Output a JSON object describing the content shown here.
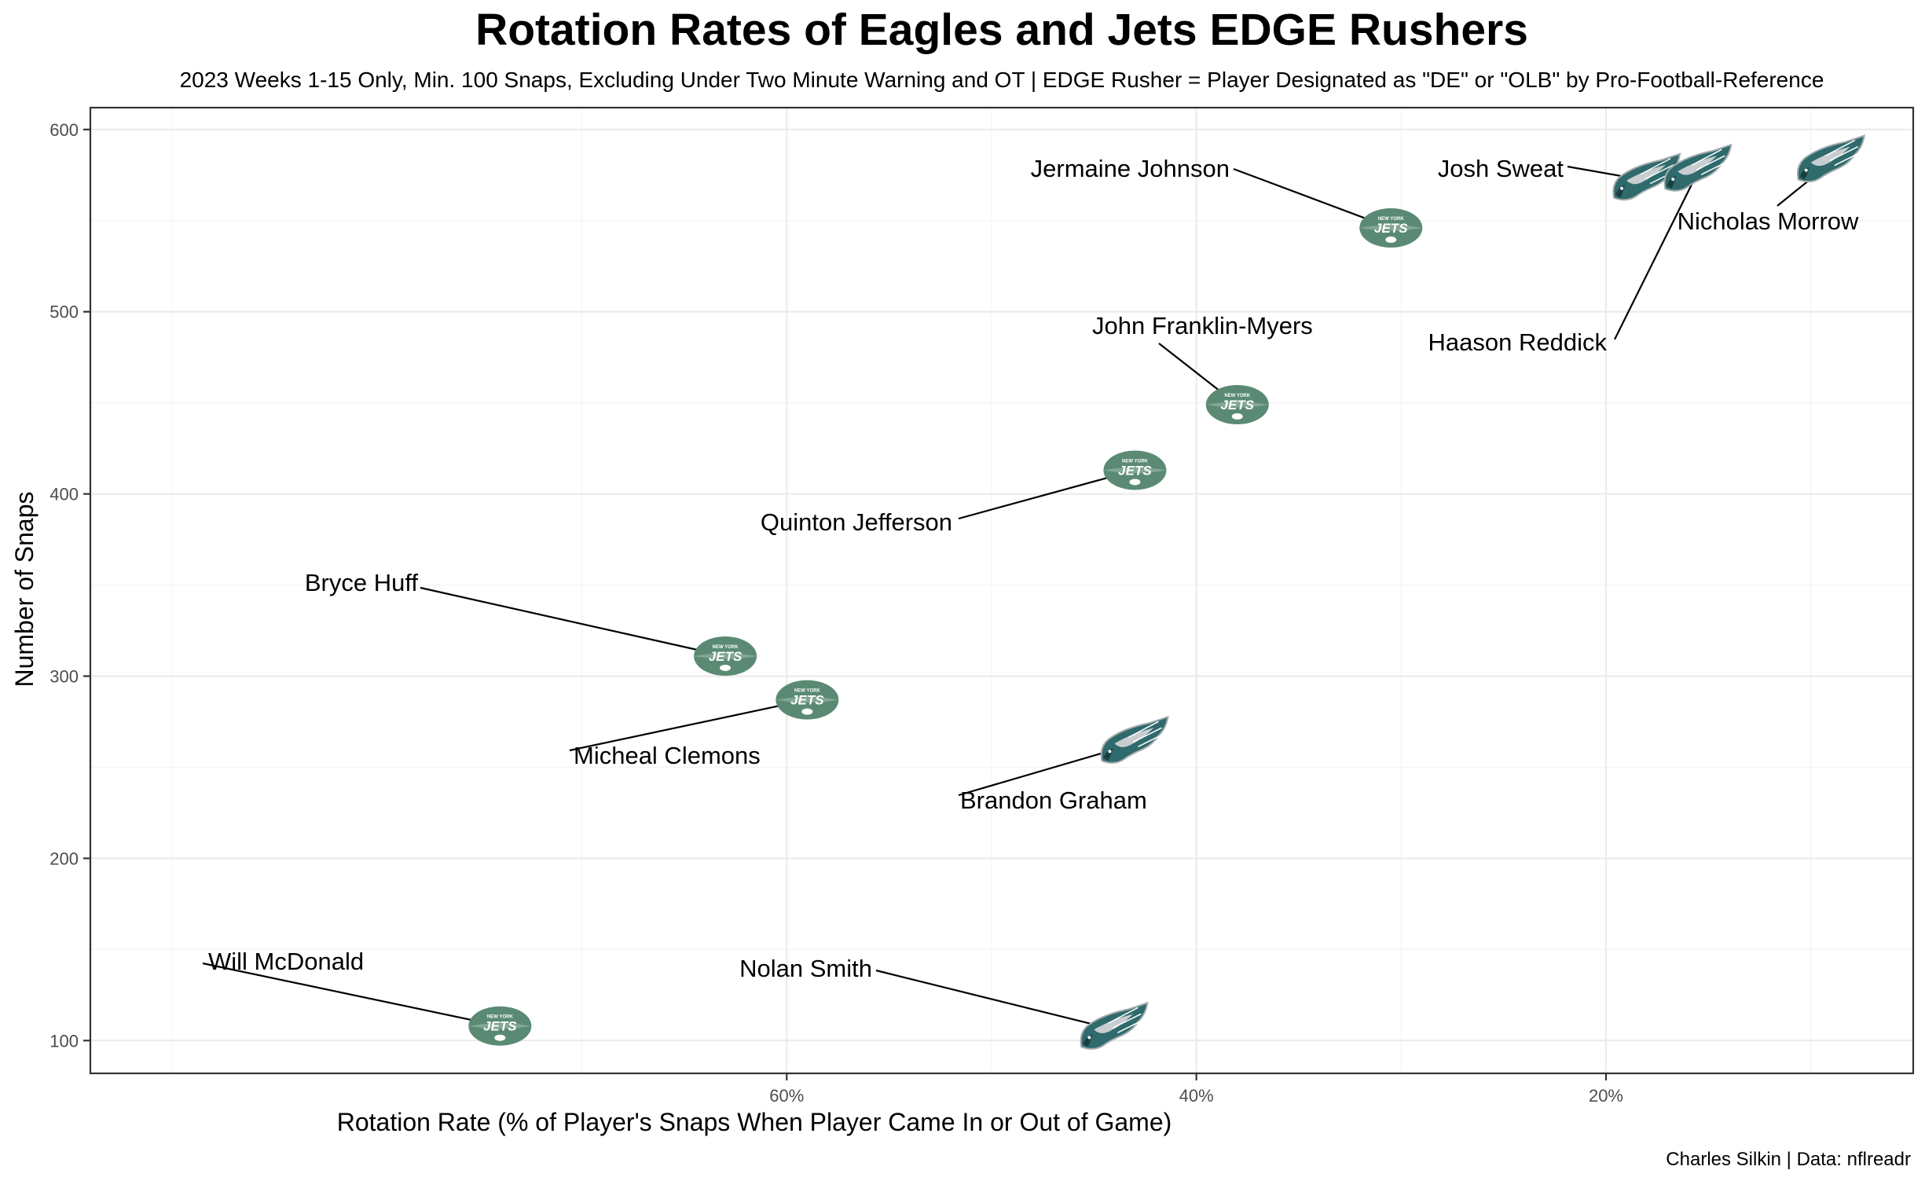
{
  "chart_data": {
    "type": "scatter",
    "title": "Rotation Rates of Eagles and Jets EDGE Rushers",
    "subtitle": "2023 Weeks 1-15 Only, Min. 100 Snaps, Excluding Under Two Minute Warning and OT | EDGE Rusher = Player Designated as \"DE\" or \"OLB\" by Pro-Football-Reference",
    "xlabel": "Rotation Rate (% of Player's Snaps When Player Came In or Out of Game)",
    "ylabel": "Number of Snaps",
    "caption": "Charles Silkin | Data: nflreadr",
    "x_reversed": true,
    "xlim": [
      0.94,
      0.05
    ],
    "ylim": [
      82,
      612
    ],
    "x_ticks": [
      0.6,
      0.4,
      0.2
    ],
    "x_tick_labels": [
      "60%",
      "40%",
      "20%"
    ],
    "y_ticks": [
      100,
      200,
      300,
      400,
      500,
      600
    ],
    "y_tick_labels": [
      "100",
      "200",
      "300",
      "400",
      "500",
      "600"
    ],
    "grid": true,
    "team_colors": {
      "Jets": "#5a8a73",
      "Eagles": "#1e4f51"
    },
    "points": [
      {
        "player": "Will McDonald",
        "team": "Jets",
        "icon": "jets-logo-icon",
        "x": 0.74,
        "y": 108
      },
      {
        "player": "Bryce Huff",
        "team": "Jets",
        "icon": "jets-logo-icon",
        "x": 0.63,
        "y": 311
      },
      {
        "player": "Micheal Clemons",
        "team": "Jets",
        "icon": "jets-logo-icon",
        "x": 0.59,
        "y": 287
      },
      {
        "player": "Quinton Jefferson",
        "team": "Jets",
        "icon": "jets-logo-icon",
        "x": 0.43,
        "y": 413
      },
      {
        "player": "John Franklin-Myers",
        "team": "Jets",
        "icon": "jets-logo-icon",
        "x": 0.38,
        "y": 449
      },
      {
        "player": "Jermaine Johnson",
        "team": "Jets",
        "icon": "jets-logo-icon",
        "x": 0.305,
        "y": 546
      },
      {
        "player": "Nolan Smith",
        "team": "Eagles",
        "icon": "eagles-logo-icon",
        "x": 0.44,
        "y": 106
      },
      {
        "player": "Brandon Graham",
        "team": "Eagles",
        "icon": "eagles-logo-icon",
        "x": 0.43,
        "y": 263
      },
      {
        "player": "Josh Sweat",
        "team": "Eagles",
        "icon": "eagles-logo-icon",
        "x": 0.18,
        "y": 572
      },
      {
        "player": "Haason Reddick",
        "team": "Eagles",
        "icon": "eagles-logo-icon",
        "x": 0.155,
        "y": 577
      },
      {
        "player": "Nicholas Morrow",
        "team": "Eagles",
        "icon": "eagles-logo-icon",
        "x": 0.09,
        "y": 582
      }
    ]
  }
}
